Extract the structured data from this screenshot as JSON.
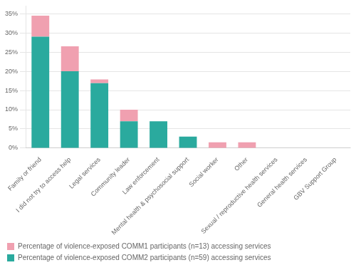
{
  "chart_data": {
    "type": "bar",
    "categories": [
      "Family or friend",
      "I did not try to access help",
      "Legal services",
      "Community leader",
      "Law enforcement",
      "Mental health & psychosocial support",
      "Social worker",
      "Other",
      "Sexual / reproductive health services",
      "General health services",
      "GBV Support Group"
    ],
    "series": [
      {
        "name": "Percentage of violence-exposed COMM2 participants (n=59) accessing services",
        "color": "#2aaa9e",
        "values": [
          29.0,
          20.0,
          16.9,
          7.0,
          7.0,
          3.0,
          0.0,
          0.0,
          0.0,
          0.0,
          0.0
        ]
      },
      {
        "name": "Percentage of violence-exposed COMM1 participants (n=13) accessing services",
        "color": "#f0a0b0",
        "values": [
          5.5,
          6.5,
          1.0,
          3.0,
          0.0,
          0.0,
          1.5,
          1.5,
          0.0,
          0.0,
          0.0
        ]
      }
    ],
    "stacked": true,
    "ylim": [
      0,
      37
    ],
    "yticks": [
      {
        "value": 0,
        "label": "0%"
      },
      {
        "value": 5,
        "label": "5%"
      },
      {
        "value": 10,
        "label": "10%"
      },
      {
        "value": 15,
        "label": "15%"
      },
      {
        "value": 20,
        "label": "20%"
      },
      {
        "value": 25,
        "label": "25%"
      },
      {
        "value": 30,
        "label": "30%"
      },
      {
        "value": 35,
        "label": "35%"
      }
    ],
    "grid": true,
    "legend": "bottom"
  }
}
